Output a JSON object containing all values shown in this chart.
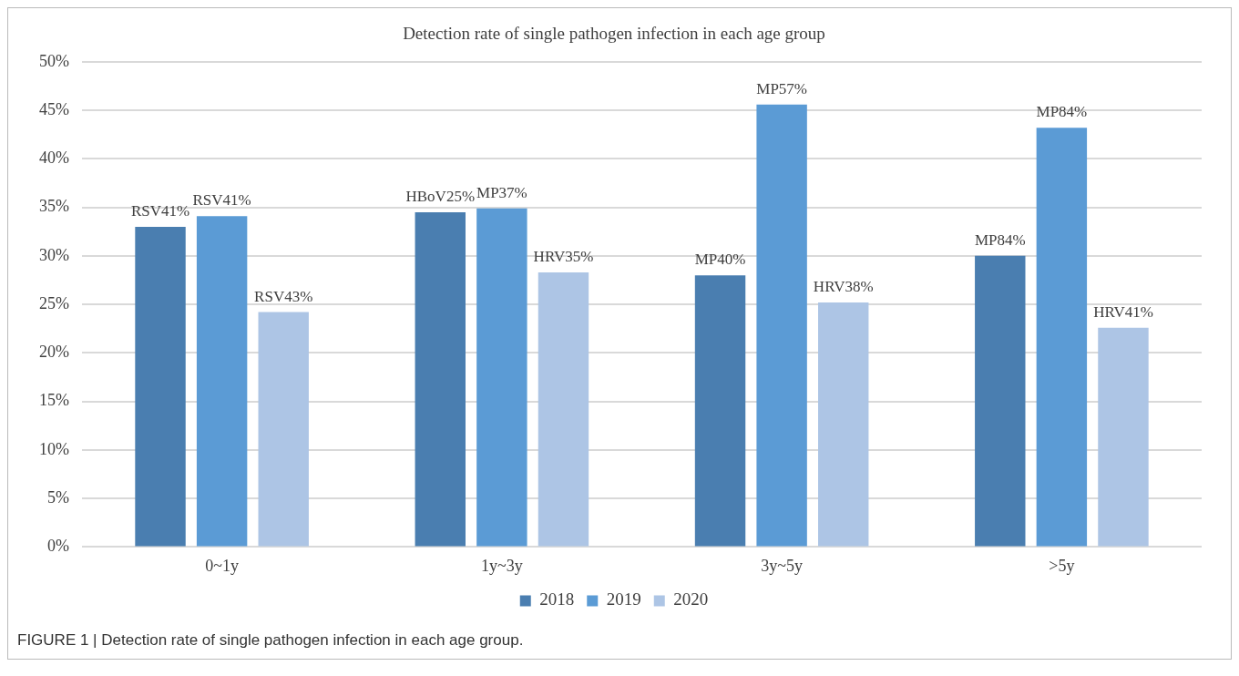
{
  "chart_data": {
    "type": "bar",
    "title": "Detection rate of single pathogen infection in each age group",
    "categories": [
      "0~1y",
      "1y~3y",
      "3y~5y",
      ">5y"
    ],
    "series": [
      {
        "name": "2018",
        "color": "#4a7eb0",
        "values": [
          33,
          34.5,
          28,
          30
        ],
        "value_labels": [
          "RSV41%",
          "HBoV25%",
          "MP40%",
          "MP84%"
        ]
      },
      {
        "name": "2019",
        "color": "#5b9bd5",
        "values": [
          34.1,
          34.9,
          45.6,
          43.2
        ],
        "value_labels": [
          "RSV41%",
          "MP37%",
          "MP57%",
          "MP84%"
        ]
      },
      {
        "name": "2020",
        "color": "#adc5e5",
        "values": [
          24.2,
          28.3,
          25.2,
          22.6
        ],
        "value_labels": [
          "RSV43%",
          "HRV35%",
          "HRV38%",
          "HRV41%"
        ]
      }
    ],
    "ylim": [
      0,
      50
    ],
    "yticks": [
      {
        "value": 0,
        "label": "0%"
      },
      {
        "value": 5,
        "label": "5%"
      },
      {
        "value": 10,
        "label": "10%"
      },
      {
        "value": 15,
        "label": "15%"
      },
      {
        "value": 20,
        "label": "20%"
      },
      {
        "value": 25,
        "label": "25%"
      },
      {
        "value": 30,
        "label": "30%"
      },
      {
        "value": 35,
        "label": "35%"
      },
      {
        "value": 40,
        "label": "40%"
      },
      {
        "value": 45,
        "label": "45%"
      },
      {
        "value": 50,
        "label": "50%"
      }
    ],
    "grid": "y",
    "legend": "bottom",
    "annotations": [
      "FIGURE 1 | Detection rate of single pathogen infection in each age group."
    ]
  }
}
